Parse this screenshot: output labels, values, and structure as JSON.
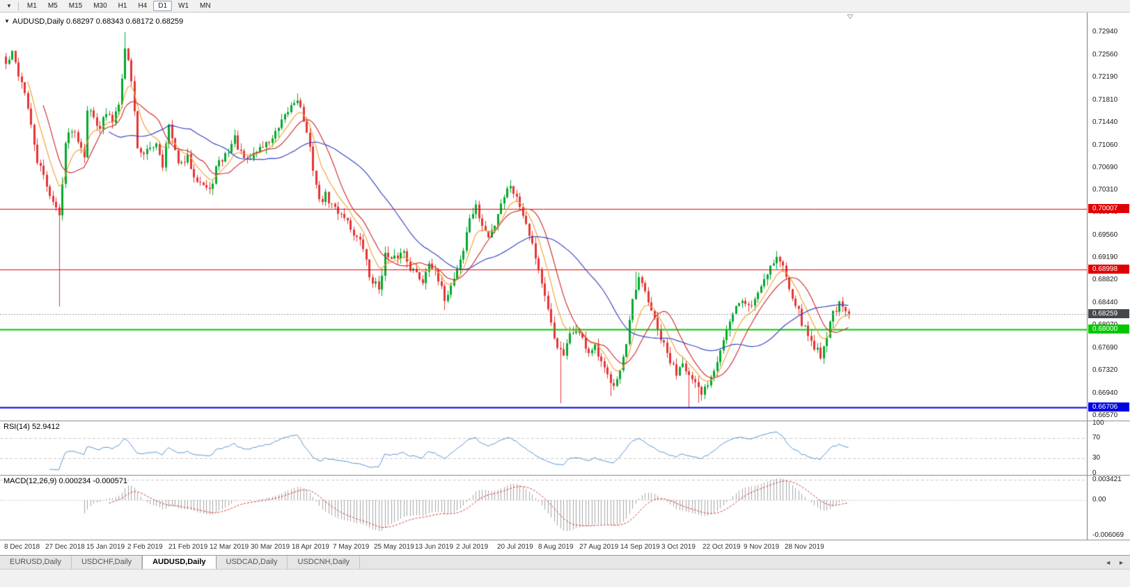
{
  "toolbar": {
    "dropdown_icon": "▼",
    "timeframes": [
      "M1",
      "M5",
      "M15",
      "M30",
      "H1",
      "H4",
      "D1",
      "W1",
      "MN"
    ],
    "active_timeframe": "D1"
  },
  "chart": {
    "collapse_icon": "▼",
    "title": "AUDUSD,Daily",
    "ohlc": "0.68297 0.68343 0.68172 0.68259"
  },
  "price_axis": {
    "ticks": [
      "0.72940",
      "0.72560",
      "0.72190",
      "0.71810",
      "0.71440",
      "0.71060",
      "0.70690",
      "0.70310",
      "0.69940",
      "0.69560",
      "0.69190",
      "0.68820",
      "0.68440",
      "0.68070",
      "0.67690",
      "0.67320",
      "0.66940",
      "0.66570"
    ],
    "badges": [
      {
        "price": "0.70007",
        "bg": "#E00000",
        "fg": "#FFFFFF"
      },
      {
        "price": "0.68998",
        "bg": "#E00000",
        "fg": "#FFFFFF"
      },
      {
        "price": "0.68259",
        "bg": "#45494D",
        "fg": "#FFFFFF"
      },
      {
        "price": "0.68000",
        "bg": "#00C800",
        "fg": "#FFFFFF"
      },
      {
        "price": "0.66706",
        "bg": "#0000E0",
        "fg": "#FFFFFF"
      }
    ]
  },
  "rsi_panel": {
    "label": "RSI(14)",
    "value": "52.9412",
    "ticks": [
      "100",
      "70",
      "30",
      "0"
    ]
  },
  "macd_panel": {
    "label": "MACD(12,26,9)",
    "values": "0.000234 -0.000571",
    "ticks": [
      "0.003421",
      "0.00",
      "-0.006069"
    ]
  },
  "date_axis": {
    "labels": [
      "8 Dec 2018",
      "27 Dec 2018",
      "15 Jan 2019",
      "2 Feb 2019",
      "21 Feb 2019",
      "12 Mar 2019",
      "30 Mar 2019",
      "18 Apr 2019",
      "7 May 2019",
      "25 May 2019",
      "13 Jun 2019",
      "2 Jul 2019",
      "20 Jul 2019",
      "8 Aug 2019",
      "27 Aug 2019",
      "14 Sep 2019",
      "3 Oct 2019",
      "22 Oct 2019",
      "9 Nov 2019",
      "28 Nov 2019"
    ]
  },
  "tabs": {
    "items": [
      "EURUSD,Daily",
      "USDCHF,Daily",
      "AUDUSD,Daily",
      "USDCAD,Daily",
      "USDCNH,Daily"
    ],
    "active": "AUDUSD,Daily",
    "scroll_left_icon": "◄",
    "scroll_right_icon": "►"
  },
  "chart_data": {
    "type": "candlestick",
    "symbol": "AUDUSD",
    "timeframe": "Daily",
    "last_bar": {
      "open": 0.68297,
      "high": 0.68343,
      "low": 0.68172,
      "close": 0.68259
    },
    "bars": 270,
    "y_range": [
      0.66484,
      0.7322
    ],
    "levels": [
      {
        "price": 0.70007,
        "color": "#EE0000",
        "width": 1,
        "style": "solid",
        "label": "0.70007"
      },
      {
        "price": 0.68998,
        "color": "#EE0000",
        "width": 1,
        "style": "solid",
        "label": "0.68998"
      },
      {
        "price": 0.68259,
        "color": "#999999",
        "width": 1,
        "style": "dotted",
        "label": "0.68259"
      },
      {
        "price": 0.68,
        "color": "#00C800",
        "width": 2,
        "style": "solid",
        "label": "0.68000"
      },
      {
        "price": 0.66706,
        "color": "#0000E0",
        "width": 2,
        "style": "solid",
        "label": "0.66706"
      }
    ],
    "close_anchors": [
      [
        0,
        0.724
      ],
      [
        2,
        0.7258
      ],
      [
        4,
        0.7225
      ],
      [
        6,
        0.7196
      ],
      [
        8,
        0.7135
      ],
      [
        10,
        0.708
      ],
      [
        13,
        0.704
      ],
      [
        15,
        0.7012
      ],
      [
        17,
        0.6988
      ],
      [
        19,
        0.711
      ],
      [
        21,
        0.7135
      ],
      [
        23,
        0.7118
      ],
      [
        25,
        0.7092
      ],
      [
        26,
        0.7168
      ],
      [
        28,
        0.7152
      ],
      [
        30,
        0.7138
      ],
      [
        32,
        0.7158
      ],
      [
        34,
        0.7146
      ],
      [
        36,
        0.718
      ],
      [
        38,
        0.7266
      ],
      [
        39,
        0.7246
      ],
      [
        40,
        0.7216
      ],
      [
        42,
        0.7105
      ],
      [
        44,
        0.7088
      ],
      [
        46,
        0.7102
      ],
      [
        48,
        0.7112
      ],
      [
        50,
        0.7075
      ],
      [
        52,
        0.7138
      ],
      [
        54,
        0.7092
      ],
      [
        56,
        0.7072
      ],
      [
        58,
        0.7085
      ],
      [
        60,
        0.7058
      ],
      [
        63,
        0.704
      ],
      [
        65,
        0.7028
      ],
      [
        67,
        0.7068
      ],
      [
        69,
        0.7082
      ],
      [
        71,
        0.7098
      ],
      [
        73,
        0.7118
      ],
      [
        75,
        0.709
      ],
      [
        77,
        0.7078
      ],
      [
        79,
        0.7092
      ],
      [
        81,
        0.7102
      ],
      [
        83,
        0.7108
      ],
      [
        85,
        0.7118
      ],
      [
        87,
        0.7132
      ],
      [
        89,
        0.7152
      ],
      [
        91,
        0.7172
      ],
      [
        93,
        0.7186
      ],
      [
        95,
        0.7148
      ],
      [
        97,
        0.7098
      ],
      [
        100,
        0.7012
      ],
      [
        102,
        0.7022
      ],
      [
        104,
        0.7006
      ],
      [
        106,
        0.6996
      ],
      [
        108,
        0.699
      ],
      [
        110,
        0.6968
      ],
      [
        112,
        0.6952
      ],
      [
        114,
        0.6936
      ],
      [
        116,
        0.6888
      ],
      [
        119,
        0.6868
      ],
      [
        121,
        0.6924
      ],
      [
        123,
        0.6912
      ],
      [
        125,
        0.6922
      ],
      [
        127,
        0.693
      ],
      [
        129,
        0.6904
      ],
      [
        131,
        0.6892
      ],
      [
        133,
        0.688
      ],
      [
        135,
        0.6916
      ],
      [
        137,
        0.6892
      ],
      [
        140,
        0.6852
      ],
      [
        142,
        0.6872
      ],
      [
        144,
        0.6902
      ],
      [
        146,
        0.6932
      ],
      [
        148,
        0.6986
      ],
      [
        150,
        0.7002
      ],
      [
        152,
        0.6972
      ],
      [
        154,
        0.6952
      ],
      [
        156,
        0.6976
      ],
      [
        158,
        0.7012
      ],
      [
        161,
        0.7042
      ],
      [
        163,
        0.7018
      ],
      [
        165,
        0.6994
      ],
      [
        167,
        0.6962
      ],
      [
        169,
        0.6922
      ],
      [
        171,
        0.6878
      ],
      [
        173,
        0.6828
      ],
      [
        175,
        0.6786
      ],
      [
        177,
        0.6762
      ],
      [
        178,
        0.6756
      ],
      [
        180,
        0.6788
      ],
      [
        182,
        0.6802
      ],
      [
        184,
        0.6782
      ],
      [
        186,
        0.6762
      ],
      [
        188,
        0.6768
      ],
      [
        190,
        0.6742
      ],
      [
        192,
        0.6722
      ],
      [
        194,
        0.6712
      ],
      [
        196,
        0.6732
      ],
      [
        198,
        0.6772
      ],
      [
        200,
        0.6846
      ],
      [
        202,
        0.6882
      ],
      [
        204,
        0.6862
      ],
      [
        206,
        0.6832
      ],
      [
        208,
        0.6796
      ],
      [
        210,
        0.6772
      ],
      [
        212,
        0.6746
      ],
      [
        214,
        0.6728
      ],
      [
        216,
        0.675
      ],
      [
        218,
        0.6722
      ],
      [
        220,
        0.6706
      ],
      [
        222,
        0.6692
      ],
      [
        224,
        0.6712
      ],
      [
        226,
        0.6736
      ],
      [
        228,
        0.6768
      ],
      [
        230,
        0.6798
      ],
      [
        232,
        0.6822
      ],
      [
        234,
        0.6848
      ],
      [
        236,
        0.6842
      ],
      [
        238,
        0.684
      ],
      [
        240,
        0.6862
      ],
      [
        242,
        0.6886
      ],
      [
        244,
        0.6906
      ],
      [
        246,
        0.692
      ],
      [
        248,
        0.6904
      ],
      [
        250,
        0.6872
      ],
      [
        252,
        0.6844
      ],
      [
        254,
        0.6812
      ],
      [
        256,
        0.679
      ],
      [
        258,
        0.6772
      ],
      [
        260,
        0.6758
      ],
      [
        262,
        0.679
      ],
      [
        264,
        0.683
      ],
      [
        266,
        0.684
      ],
      [
        268,
        0.6828
      ],
      [
        269,
        0.68259
      ]
    ],
    "high_wicks": [
      [
        38,
        0.7294
      ],
      [
        93,
        0.7192
      ],
      [
        161,
        0.7048
      ],
      [
        201,
        0.6896
      ],
      [
        246,
        0.693
      ]
    ],
    "low_wicks": [
      [
        17,
        0.6838
      ],
      [
        119,
        0.6864
      ],
      [
        140,
        0.6832
      ],
      [
        177,
        0.6677
      ],
      [
        193,
        0.6689
      ],
      [
        218,
        0.667
      ],
      [
        221,
        0.6678
      ],
      [
        260,
        0.6754
      ]
    ],
    "moving_averages": [
      {
        "period": 8,
        "type": "ema",
        "color": "#F2A33C"
      },
      {
        "period": 13,
        "type": "sma",
        "color": "#D03434"
      },
      {
        "period": 34,
        "type": "sma",
        "color": "#3947C0"
      }
    ],
    "colors": {
      "up": "#00A92C",
      "down": "#E53434",
      "rsi": "#5A95D2",
      "macd_hist": "#A6A6A6",
      "macd_signal": "#D83838",
      "grid": "#C8C8C8"
    },
    "indicators": {
      "rsi": {
        "period": 14,
        "levels": [
          70,
          30
        ]
      },
      "macd": {
        "fast": 12,
        "slow": 26,
        "signal": 9,
        "range": [
          -0.006069,
          0.003421
        ]
      }
    }
  }
}
